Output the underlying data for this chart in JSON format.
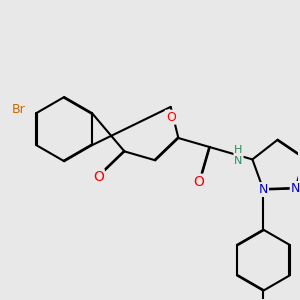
{
  "bg_color": "#e8e8e8",
  "bond_color": "#000000",
  "bond_width": 1.5,
  "atom_colors": {
    "O": "#ff0000",
    "N": "#0000cd",
    "NH": "#2e8b57",
    "Br": "#cc6600"
  },
  "font_size": 9,
  "fig_width": 3.0,
  "fig_height": 3.0,
  "dpi": 100
}
